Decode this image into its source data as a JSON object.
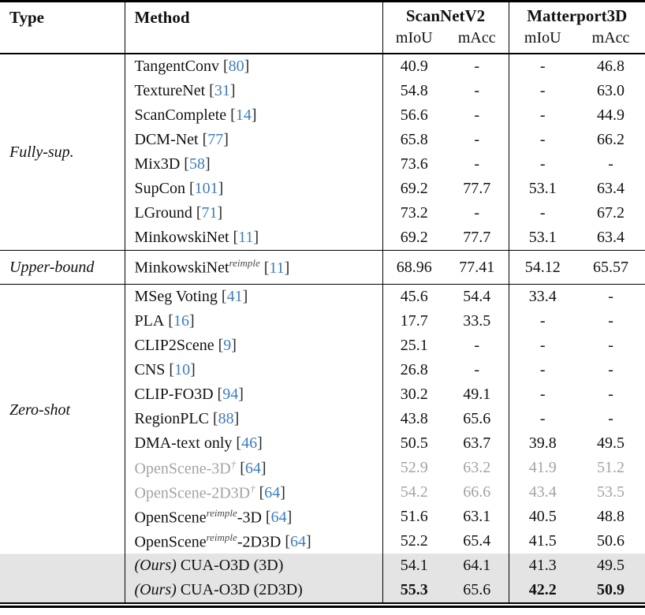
{
  "table": {
    "header": {
      "type": "Type",
      "method": "Method",
      "dataset1": "ScanNetV2",
      "dataset2": "Matterport3D",
      "miou": "mIoU",
      "macc": "mAcc"
    },
    "punct": {
      "open": "[",
      "close": "]"
    },
    "ours_label": "(Ours)",
    "colors": {
      "citation_blue": "#3d7dbe",
      "muted_gray_text": "#a3a3a3",
      "highlight_row_bg": "#e4e4e4",
      "rule_black": "#000000"
    },
    "groups": [
      {
        "label": "Fully-sup.",
        "rows": [
          {
            "pre": "TangentConv",
            "cite": "80",
            "values": [
              "40.9",
              "-",
              "-",
              "46.8"
            ]
          },
          {
            "pre": "TextureNet",
            "cite": "31",
            "values": [
              "54.8",
              "-",
              "-",
              "63.0"
            ]
          },
          {
            "pre": "ScanComplete",
            "cite": "14",
            "values": [
              "56.6",
              "-",
              "-",
              "44.9"
            ]
          },
          {
            "pre": "DCM-Net",
            "cite": "77",
            "values": [
              "65.8",
              "-",
              "-",
              "66.2"
            ]
          },
          {
            "pre": "Mix3D",
            "cite": "58",
            "values": [
              "73.6",
              "-",
              "-",
              "-"
            ]
          },
          {
            "pre": "SupCon",
            "cite": "101",
            "values": [
              "69.2",
              "77.7",
              "53.1",
              "63.4"
            ]
          },
          {
            "pre": "LGround",
            "cite": "71",
            "values": [
              "73.2",
              "-",
              "-",
              "67.2"
            ]
          },
          {
            "pre": "MinkowskiNet",
            "cite": "11",
            "values": [
              "69.2",
              "77.7",
              "53.1",
              "63.4"
            ]
          }
        ]
      },
      {
        "label": "Upper-bound",
        "rows": [
          {
            "pre": "MinkowskiNet",
            "sup": "reimple",
            "cite": "11",
            "values": [
              "68.96",
              "77.41",
              "54.12",
              "65.57"
            ]
          }
        ]
      },
      {
        "label": "Zero-shot",
        "rows": [
          {
            "pre": "MSeg Voting",
            "cite": "41",
            "values": [
              "45.6",
              "54.4",
              "33.4",
              "-"
            ]
          },
          {
            "pre": "PLA",
            "cite": "16",
            "values": [
              "17.7",
              "33.5",
              "-",
              "-"
            ]
          },
          {
            "pre": "CLIP2Scene",
            "cite": "9",
            "values": [
              "25.1",
              "-",
              "-",
              "-"
            ]
          },
          {
            "pre": "CNS",
            "cite": "10",
            "values": [
              "26.8",
              "-",
              "-",
              "-"
            ]
          },
          {
            "pre": "CLIP-FO3D",
            "cite": "94",
            "values": [
              "30.2",
              "49.1",
              "-",
              "-"
            ]
          },
          {
            "pre": "RegionPLC",
            "cite": "88",
            "values": [
              "43.8",
              "65.6",
              "-",
              "-"
            ]
          },
          {
            "pre": "DMA-text only",
            "cite": "46",
            "values": [
              "50.5",
              "63.7",
              "39.8",
              "49.5"
            ]
          },
          {
            "pre": "OpenScene-3D",
            "sup": "†",
            "cite": "64",
            "gray": true,
            "values": [
              "52.9",
              "63.2",
              "41.9",
              "51.2"
            ]
          },
          {
            "pre": "OpenScene-2D3D",
            "sup": "†",
            "cite": "64",
            "gray": true,
            "values": [
              "54.2",
              "66.6",
              "43.4",
              "53.5"
            ]
          },
          {
            "pre": "OpenScene",
            "sup": "reimple",
            "post": "-3D",
            "cite": "64",
            "values": [
              "51.6",
              "63.1",
              "40.5",
              "48.8"
            ]
          },
          {
            "pre": "OpenScene",
            "sup": "reimple",
            "post": "-2D3D",
            "cite": "64",
            "values": [
              "52.2",
              "65.4",
              "41.5",
              "50.6"
            ]
          },
          {
            "ours": true,
            "pre": "CUA-O3D (3D)",
            "highlight": true,
            "values": [
              "54.1",
              "64.1",
              "41.3",
              "49.5"
            ]
          },
          {
            "ours": true,
            "pre": "CUA-O3D (2D3D)",
            "highlight": true,
            "values": [
              "55.3",
              "65.6",
              "42.2",
              "50.9"
            ],
            "bold": [
              true,
              false,
              true,
              true
            ]
          }
        ]
      }
    ]
  }
}
